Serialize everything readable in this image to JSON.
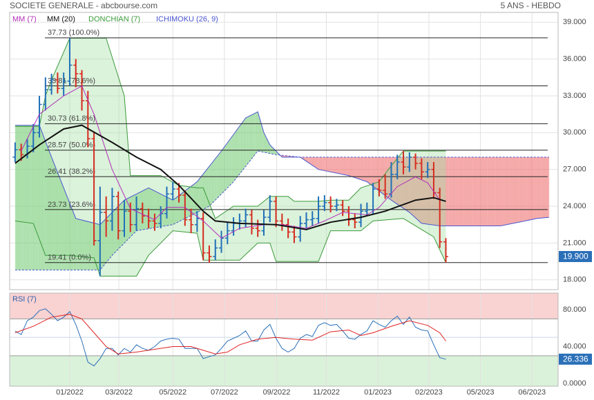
{
  "chart_data": [
    {
      "type": "ohlc",
      "title": "SOCIETE GENERALE - abcbourse.com",
      "subtitle": "5 ANS - HEBDO",
      "xlim": [
        -0.9,
        89.5
      ],
      "xticks": [
        {
          "value": 9.0,
          "label": "01/2022"
        },
        {
          "value": 17.1,
          "label": "03/2022"
        },
        {
          "value": 26.0,
          "label": "05/2022"
        },
        {
          "value": 34.5,
          "label": "07/2022"
        },
        {
          "value": 43.1,
          "label": "09/2022"
        },
        {
          "value": 51.3,
          "label": "11/2022"
        },
        {
          "value": 59.8,
          "label": "01/2023"
        },
        {
          "value": 68.2,
          "label": "02/2023"
        },
        {
          "value": 76.7,
          "label": "05/2023"
        },
        {
          "value": 85.2,
          "label": "06/2023"
        }
      ],
      "ylim": [
        17.2,
        39.8
      ],
      "yticks": [
        {
          "value": 18,
          "label": "18.000"
        },
        {
          "value": 21,
          "label": "21.000"
        },
        {
          "value": 24,
          "label": "24.000"
        },
        {
          "value": 27,
          "label": "27.000"
        },
        {
          "value": 30,
          "label": "30.000"
        },
        {
          "value": 33,
          "label": "33.000"
        },
        {
          "value": 36,
          "label": "36.000"
        },
        {
          "value": 39,
          "label": "39.000"
        }
      ],
      "grid": true,
      "colors": {
        "up": "#1f6fb8",
        "down": "#d62a1e"
      },
      "ohlc": {
        "open": [
          28.0,
          28.6,
          28.2,
          28.9,
          30.0,
          32.3,
          33.5,
          34.3,
          33.6,
          34.2,
          35.5,
          34.8,
          32.6,
          29.5,
          21.2,
          23.5,
          22.8,
          24.8,
          22.0,
          23.6,
          22.5,
          23.8,
          23.2,
          22.8,
          22.6,
          23.4,
          25.0,
          25.4,
          24.9,
          22.9,
          22.5,
          23.0,
          20.2,
          19.9,
          20.6,
          21.4,
          22.0,
          22.6,
          22.8,
          23.3,
          22.2,
          22.0,
          23.1,
          24.4,
          22.8,
          22.5,
          21.9,
          21.5,
          22.6,
          22.9,
          23.0,
          24.0,
          24.3,
          24.0,
          24.1,
          23.6,
          22.9,
          22.7,
          23.6,
          23.7,
          25.4,
          25.3,
          25.0,
          26.6,
          27.6,
          27.2,
          28.0,
          27.5,
          26.8,
          27.0,
          25.1,
          21.1
        ],
        "high": [
          29.2,
          29.1,
          29.5,
          30.7,
          33.0,
          34.5,
          34.8,
          34.9,
          34.9,
          37.7,
          36.0,
          35.1,
          33.4,
          30.0,
          25.6,
          24.8,
          25.5,
          25.2,
          24.5,
          24.3,
          24.8,
          24.3,
          23.8,
          23.4,
          24.0,
          25.6,
          26.0,
          25.9,
          25.3,
          23.8,
          23.6,
          23.5,
          20.8,
          21.3,
          22.0,
          22.7,
          23.1,
          23.4,
          23.8,
          23.7,
          22.9,
          23.7,
          24.9,
          24.8,
          23.4,
          23.0,
          22.4,
          23.2,
          23.5,
          23.6,
          24.8,
          24.9,
          24.8,
          24.6,
          24.5,
          24.0,
          23.4,
          24.2,
          24.3,
          25.9,
          26.2,
          26.6,
          27.6,
          28.2,
          28.5,
          28.4,
          28.3,
          27.9,
          27.6,
          27.6,
          25.5,
          21.4
        ],
        "low": [
          27.6,
          27.7,
          27.9,
          28.4,
          29.6,
          31.8,
          33.1,
          33.2,
          33.0,
          33.8,
          33.7,
          31.8,
          28.8,
          20.8,
          18.3,
          21.5,
          22.0,
          21.3,
          21.5,
          21.9,
          22.0,
          22.6,
          22.2,
          22.0,
          22.2,
          23.0,
          24.5,
          24.3,
          22.4,
          21.8,
          21.9,
          19.6,
          19.4,
          19.6,
          20.2,
          20.9,
          21.6,
          22.1,
          22.3,
          21.7,
          21.5,
          21.6,
          22.7,
          22.3,
          22.0,
          21.4,
          21.0,
          21.1,
          22.2,
          22.4,
          22.6,
          23.6,
          23.5,
          23.6,
          23.2,
          22.4,
          22.2,
          22.3,
          23.2,
          23.3,
          24.8,
          24.6,
          24.7,
          26.2,
          26.6,
          26.8,
          27.0,
          26.2,
          26.3,
          24.6,
          20.6,
          19.4
        ],
        "close": [
          28.6,
          28.2,
          28.9,
          30.0,
          32.3,
          33.5,
          34.3,
          33.6,
          34.2,
          35.5,
          34.8,
          32.6,
          29.5,
          21.2,
          23.5,
          22.8,
          24.8,
          22.0,
          23.6,
          22.5,
          23.8,
          23.2,
          22.8,
          22.6,
          23.4,
          25.0,
          25.4,
          24.9,
          22.9,
          22.5,
          23.0,
          20.2,
          19.9,
          20.6,
          21.4,
          22.0,
          22.6,
          22.8,
          23.3,
          22.2,
          22.0,
          23.1,
          24.4,
          22.8,
          22.5,
          21.9,
          21.5,
          22.6,
          22.9,
          23.0,
          24.0,
          24.3,
          24.0,
          24.1,
          23.6,
          22.9,
          22.7,
          23.6,
          23.7,
          25.4,
          25.3,
          25.0,
          26.6,
          27.6,
          27.2,
          28.0,
          27.5,
          26.8,
          27.0,
          25.1,
          21.1,
          19.9
        ]
      },
      "last": {
        "value": 19.9,
        "label": "19.900"
      },
      "series": [
        {
          "name": "MM (7)",
          "color": "#b22eb8",
          "x": [
            1,
            4,
            8,
            11,
            13,
            16,
            19,
            23,
            25,
            28,
            31,
            34,
            37,
            41,
            44,
            48,
            51,
            54,
            58,
            60,
            63,
            66,
            68,
            70
          ],
          "values": [
            28.5,
            31.5,
            33.0,
            33.8,
            31.5,
            27.0,
            23.8,
            22.9,
            23.9,
            23.9,
            22.8,
            21.4,
            22.2,
            22.5,
            22.5,
            22.2,
            22.8,
            23.5,
            23.3,
            23.9,
            25.6,
            26.4,
            25.9,
            24.5
          ]
        },
        {
          "name": "MM (20)",
          "color": "#111111",
          "x": [
            0,
            4,
            8,
            11,
            16,
            20,
            24,
            27,
            31,
            33,
            37,
            43,
            48,
            52,
            57,
            61,
            66,
            69,
            71
          ],
          "values": [
            27.5,
            29.0,
            30.3,
            30.6,
            29.2,
            28.0,
            27.0,
            25.7,
            23.6,
            22.8,
            22.6,
            22.5,
            22.1,
            22.7,
            23.1,
            23.6,
            24.5,
            24.7,
            24.4
          ]
        },
        {
          "name": "DONCHIAN (7)",
          "color": "#3a9a3a",
          "fill": "#a6dea6",
          "upper": {
            "x": [
              0,
              4,
              5,
              6,
              9,
              15,
              18,
              19,
              24,
              27,
              30,
              31,
              33,
              36,
              40,
              42,
              45,
              46,
              50,
              52,
              55,
              57,
              60,
              62,
              64,
              71
            ],
            "values": [
              30.5,
              30.5,
              33.0,
              34.3,
              37.7,
              37.7,
              33.0,
              26.5,
              26.5,
              25.7,
              25.5,
              25.5,
              23.0,
              24.0,
              24.0,
              24.8,
              24.8,
              24.4,
              24.4,
              24.5,
              24.5,
              25.5,
              26.0,
              27.3,
              28.5,
              28.5
            ]
          },
          "lower": {
            "x": [
              0,
              3,
              5,
              9,
              13,
              14,
              20,
              22,
              26,
              30,
              31,
              37,
              40,
              42,
              43,
              50,
              52,
              57,
              59,
              64,
              69,
              71
            ],
            "values": [
              22.8,
              22.6,
              20.0,
              20.0,
              19.8,
              18.3,
              18.3,
              20.0,
              22.0,
              21.8,
              19.6,
              19.6,
              21.0,
              21.0,
              19.5,
              19.5,
              22.0,
              22.0,
              22.8,
              23.0,
              21.5,
              19.4
            ]
          }
        },
        {
          "name": "ICHIMOKU (26, 9)",
          "color": "#4a55d0",
          "fill_up": "#5cc25c",
          "fill_down": "#f07a7a",
          "span_a": {
            "x": [
              0,
              4,
              6,
              10,
              14,
              18,
              22,
              26,
              30,
              34,
              38,
              40,
              41,
              42,
              44,
              47,
              50,
              55,
              58,
              62,
              65,
              67,
              70,
              75,
              80,
              83,
              86,
              88
            ],
            "values": [
              30.6,
              30.6,
              28.0,
              23.0,
              22.5,
              24.5,
              25.5,
              24.5,
              26.0,
              28.5,
              31.2,
              31.7,
              30.0,
              29.0,
              28.0,
              28.0,
              27.0,
              26.5,
              26.0,
              24.5,
              23.5,
              22.6,
              22.4,
              22.4,
              22.4,
              22.7,
              23.0,
              23.1
            ]
          },
          "span_b": {
            "x": [
              0,
              14,
              16,
              20,
              26,
              32,
              36,
              40,
              43,
              47,
              88
            ],
            "values": [
              18.8,
              18.8,
              20.0,
              22.0,
              22.5,
              24.0,
              26.0,
              28.5,
              28.2,
              28.0,
              28.0
            ]
          }
        }
      ],
      "fibonacci": [
        {
          "value": 37.73,
          "label": "37.73 (100.0%)"
        },
        {
          "value": 33.81,
          "label": "33.81 (78.6%)"
        },
        {
          "value": 30.73,
          "label": "30.73 (61.8%)"
        },
        {
          "value": 28.57,
          "label": "28.57 (50.0%)"
        },
        {
          "value": 26.41,
          "label": "26.41 (38.2%)"
        },
        {
          "value": 23.73,
          "label": "23.73 (23.6%)"
        },
        {
          "value": 19.41,
          "label": "19.41 (0.0%)"
        }
      ]
    },
    {
      "type": "line",
      "title": "RSI (7)",
      "ylim": [
        -3,
        98
      ],
      "yticks": [
        {
          "value": 0,
          "label": "0.0000"
        },
        {
          "value": 40,
          "label": "40.000"
        },
        {
          "value": 80,
          "label": "80.000"
        }
      ],
      "overbought": 70,
      "oversold": 30,
      "midline": 50,
      "overbought_color": "#f9d2d2",
      "oversold_color": "#daf1da",
      "last": {
        "value": 26.336,
        "label": "26.336"
      },
      "series": [
        {
          "color": "#2a6fb8",
          "values": [
            56.8,
            53,
            68,
            72,
            79,
            81,
            75,
            68,
            72,
            78,
            64,
            46,
            23,
            19,
            27,
            38,
            38,
            31,
            38,
            34,
            42,
            38,
            36,
            40,
            46,
            48,
            49,
            48,
            38,
            38,
            38,
            27,
            29,
            31,
            38,
            46,
            49,
            52,
            57,
            46,
            46,
            58,
            64,
            49,
            38,
            34,
            38,
            49,
            53,
            51,
            63,
            66,
            63,
            64,
            57,
            49,
            48,
            53,
            57,
            68,
            64,
            61,
            68,
            73,
            64,
            72,
            61,
            58,
            57,
            42,
            28,
            26.336
          ]
        },
        {
          "color": "#e02020",
          "x": [
            0,
            3,
            6,
            9,
            11,
            13,
            15,
            17,
            20,
            23,
            26,
            29,
            31,
            33,
            35,
            37,
            40,
            43,
            46,
            49,
            52,
            55,
            57,
            59,
            62,
            65,
            68,
            70,
            71
          ],
          "values": [
            55,
            62,
            72,
            75,
            70,
            55,
            40,
            32,
            34,
            37,
            40,
            40,
            36,
            32,
            34,
            42,
            48,
            50,
            48,
            47,
            56,
            58,
            52,
            55,
            62,
            68,
            63,
            55,
            46
          ]
        }
      ]
    }
  ]
}
